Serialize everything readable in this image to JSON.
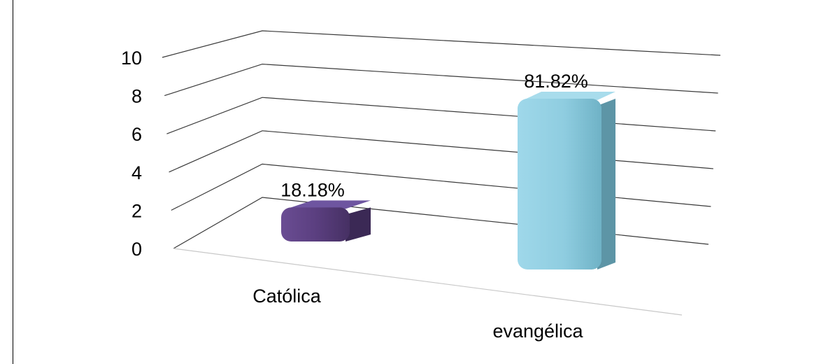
{
  "chart_data": {
    "type": "bar",
    "categories": [
      "Católica",
      "evangélica"
    ],
    "values": [
      1.8,
      8.0
    ],
    "data_labels": [
      "18.18%",
      "81.82%"
    ],
    "yticks": [
      "0",
      "2",
      "4",
      "6",
      "8",
      "10"
    ],
    "ylim": [
      0,
      10
    ],
    "grid": true,
    "legend": "none",
    "colors": [
      "#5b3f80",
      "#8fcde0"
    ]
  }
}
